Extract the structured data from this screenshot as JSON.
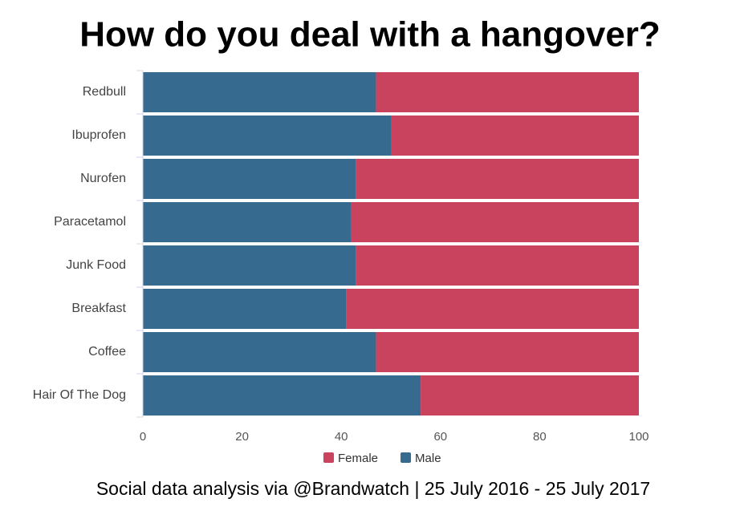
{
  "chart_data": {
    "type": "stacked-bar-horizontal",
    "title": "How do you deal with a hangover?",
    "categories": [
      "Redbull",
      "Ibuprofen",
      "Nurofen",
      "Paracetamol",
      "Junk Food",
      "Breakfast",
      "Coffee",
      "Hair Of The Dog"
    ],
    "series": [
      {
        "name": "Male",
        "color": "#376a8f",
        "values": [
          47,
          50,
          43,
          42,
          43,
          41,
          47,
          56
        ]
      },
      {
        "name": "Female",
        "color": "#c9435e",
        "values": [
          53,
          50,
          57,
          58,
          57,
          59,
          53,
          44
        ]
      }
    ],
    "xlim": [
      0,
      100
    ],
    "xticks": [
      0,
      20,
      40,
      60,
      80,
      100
    ],
    "legend": "bottom",
    "caption": "Social data analysis via @Brandwatch | 25 July 2016 - 25 July 2017"
  }
}
